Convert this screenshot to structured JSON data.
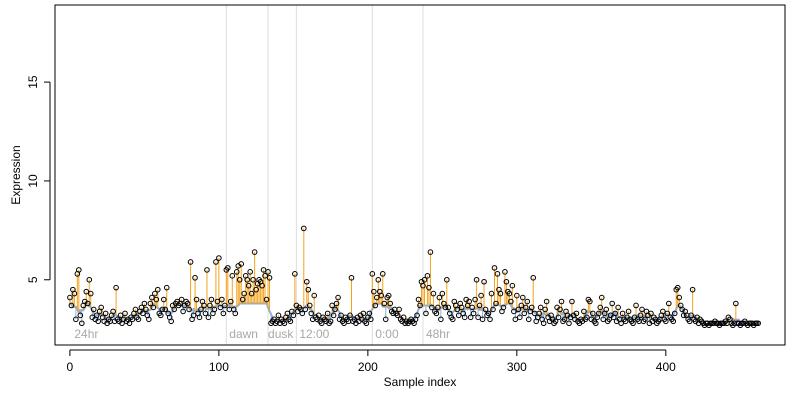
{
  "chart_data": {
    "type": "scatter",
    "title": "",
    "xlabel": "Sample index",
    "ylabel": "Expression",
    "xlim": [
      -10,
      480
    ],
    "ylim": [
      1.7,
      18.9
    ],
    "xticks": [
      0,
      100,
      200,
      300,
      400
    ],
    "yticks": [
      5,
      10,
      15
    ],
    "grid": false,
    "region_boundaries": [
      105,
      133,
      152,
      203,
      237
    ],
    "region_labels": [
      {
        "text": "24hr",
        "x": 3
      },
      {
        "text": "dawn",
        "x": 107
      },
      {
        "text": "dusk",
        "x": 133
      },
      {
        "text": "12:00",
        "x": 154
      },
      {
        "text": "0:00",
        "x": 205
      },
      {
        "text": "48hr",
        "x": 239
      }
    ],
    "colors": {
      "baseline_line": "#8fb0db",
      "baseline_line_alt": "#9e9e9e",
      "up_segment": "#f5a21b",
      "down_segment": "#8fb0db",
      "point_stroke": "#000000",
      "region_line": "#dddddd",
      "region_label": "#a8a8a8"
    },
    "series": [
      {
        "values": [
          4.1,
          3.7,
          4.5,
          4.3,
          3.0,
          5.3,
          5.5,
          3.2,
          2.8,
          3.7,
          3.9,
          4.4,
          3.8,
          5.0,
          4.3,
          3.1,
          3.5,
          3.0,
          3.2,
          2.9,
          3.4,
          3.6,
          3.1,
          2.9,
          3.3,
          2.8,
          3.0,
          2.9,
          3.2,
          3.4,
          2.9,
          4.6,
          3.0,
          2.9,
          3.2,
          2.8,
          3.0,
          3.3,
          2.9,
          3.0,
          2.8,
          3.1,
          3.0,
          3.3,
          3.5,
          3.1,
          3.0,
          3.4,
          3.6,
          3.3,
          3.8,
          3.5,
          3.2,
          3.0,
          3.8,
          4.1,
          3.6,
          4.3,
          4.0,
          4.5,
          3.3,
          3.2,
          3.5,
          4.0,
          3.5,
          4.6,
          3.3,
          3.1,
          2.9,
          3.7,
          3.5,
          3.8,
          3.9,
          3.7,
          3.8,
          4.0,
          3.4,
          3.7,
          3.9,
          3.8,
          3.5,
          5.9,
          3.0,
          3.2,
          5.1,
          4.0,
          3.3,
          3.1,
          3.5,
          3.9,
          3.7,
          3.3,
          5.5,
          3.1,
          3.7,
          4.0,
          3.3,
          3.5,
          5.9,
          3.9,
          6.1,
          3.6,
          4.0,
          3.3,
          3.7,
          5.5,
          5.6,
          3.5,
          3.9,
          5.2,
          3.5,
          3.3,
          5.4,
          5.7,
          5.0,
          5.8,
          4.0,
          4.3,
          5.2,
          5.0,
          4.7,
          5.4,
          4.3,
          5.0,
          6.4,
          4.5,
          4.8,
          5.0,
          4.9,
          4.7,
          5.5,
          5.2,
          4.0,
          5.4,
          5.1,
          2.8,
          2.9,
          3.0,
          2.8,
          2.9,
          3.2,
          2.8,
          3.0,
          2.9,
          2.8,
          3.1,
          3.3,
          3.0,
          2.9,
          3.4,
          3.2,
          5.3,
          3.7,
          3.4,
          3.6,
          3.5,
          3.3,
          7.6,
          3.5,
          4.9,
          4.5,
          3.7,
          3.3,
          3.0,
          4.2,
          3.1,
          3.0,
          3.2,
          2.9,
          2.8,
          3.1,
          3.0,
          2.9,
          3.3,
          2.8,
          2.9,
          3.7,
          3.2,
          3.5,
          3.8,
          4.1,
          3.0,
          3.2,
          2.9,
          2.8,
          3.1,
          3.0,
          2.9,
          3.2,
          5.1,
          2.9,
          3.0,
          2.8,
          3.1,
          2.9,
          3.2,
          3.0,
          3.3,
          2.9,
          2.8,
          3.1,
          3.3,
          3.0,
          5.3,
          4.4,
          3.7,
          4.1,
          5.0,
          4.4,
          4.2,
          5.3,
          3.8,
          3.0,
          4.1,
          4.2,
          3.8,
          3.4,
          3.3,
          3.5,
          3.3,
          3.2,
          3.5,
          3.0,
          2.9,
          3.1,
          2.8,
          2.9,
          2.8,
          2.9,
          3.0,
          2.9,
          2.8,
          3.0,
          3.2,
          4.0,
          3.7,
          4.9,
          4.7,
          5.0,
          3.3,
          5.2,
          4.6,
          6.4,
          3.6,
          4.3,
          3.4,
          3.3,
          3.6,
          4.1,
          3.0,
          4.3,
          3.8,
          3.6,
          5.0,
          3.6,
          3.3,
          3.1,
          3.0,
          3.9,
          3.7,
          3.5,
          3.2,
          3.8,
          3.6,
          3.3,
          3.1,
          4.0,
          3.7,
          3.9,
          3.1,
          3.6,
          3.3,
          4.0,
          5.0,
          3.1,
          3.7,
          4.2,
          3.0,
          4.9,
          3.5,
          3.2,
          3.3,
          3.0,
          4.3,
          3.5,
          5.6,
          3.8,
          5.3,
          4.5,
          4.3,
          3.4,
          3.6,
          5.4,
          4.9,
          4.4,
          4.3,
          3.9,
          4.7,
          3.4,
          3.0,
          4.2,
          3.5,
          3.1,
          3.7,
          4.1,
          3.3,
          3.6,
          3.9,
          3.0,
          3.4,
          3.6,
          5.1,
          3.3,
          2.9,
          3.1,
          3.3,
          3.6,
          3.0,
          2.8,
          3.5,
          3.9,
          3.1,
          2.9,
          3.2,
          3.0,
          2.8,
          2.9,
          3.6,
          3.1,
          3.5,
          3.9,
          2.9,
          3.0,
          3.4,
          3.2,
          2.8,
          3.1,
          3.9,
          3.2,
          3.0,
          3.3,
          2.9,
          2.8,
          3.0,
          2.9,
          3.4,
          3.0,
          3.1,
          4.0,
          3.9,
          3.0,
          3.3,
          2.9,
          2.8,
          3.1,
          3.3,
          3.6,
          4.1,
          3.0,
          3.3,
          3.5,
          2.9,
          3.0,
          3.2,
          3.8,
          3.1,
          3.3,
          2.9,
          3.6,
          3.0,
          2.8,
          3.3,
          3.0,
          2.9,
          3.1,
          3.4,
          3.0,
          2.9,
          2.8,
          3.1,
          3.7,
          3.0,
          2.9,
          3.2,
          3.5,
          2.9,
          3.0,
          3.4,
          3.2,
          2.8,
          3.3,
          2.9,
          3.1,
          3.0,
          2.8,
          2.9,
          3.0,
          3.2,
          3.4,
          3.0,
          2.9,
          3.3,
          3.8,
          3.1,
          3.0,
          2.9,
          3.3,
          4.5,
          4.6,
          4.1,
          3.7,
          3.5,
          3.2,
          3.4,
          3.2,
          3.0,
          2.9,
          3.2,
          4.5,
          3.0,
          2.9,
          3.1,
          2.8,
          3.0,
          2.9,
          2.8,
          2.7,
          2.8,
          2.8,
          2.7,
          2.8,
          2.8,
          2.8,
          2.9,
          2.8,
          2.8,
          2.7,
          2.8,
          2.8,
          2.8,
          2.9,
          2.8,
          3.1,
          3.0,
          2.8,
          2.7,
          2.8,
          3.8,
          2.8,
          2.8,
          2.7,
          2.8,
          2.8,
          2.9,
          2.8,
          2.7,
          2.8,
          2.8,
          2.8,
          2.7,
          2.8,
          2.8,
          2.8
        ]
      }
    ]
  }
}
